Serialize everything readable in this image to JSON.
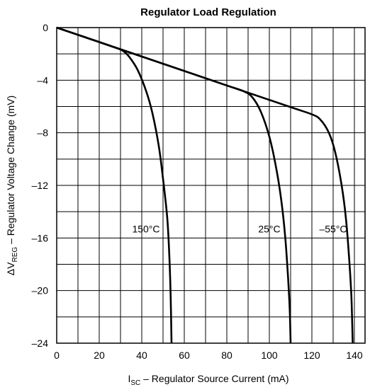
{
  "chart_data": {
    "type": "line",
    "title": "Regulator Load Regulation",
    "ylabel": {
      "prefix": "ΔV",
      "sub": "REG",
      "suffix": " – Regulator Voltage Change (mV)"
    },
    "xlabel": {
      "prefix": "I",
      "sub": "SC",
      "suffix": " – Regulator Source Current (mA)"
    },
    "xlim": [
      0,
      145
    ],
    "ylim": [
      -24,
      0
    ],
    "xticks": [
      0,
      20,
      40,
      60,
      80,
      100,
      120,
      140
    ],
    "yticks": [
      0,
      -4,
      -8,
      -12,
      -16,
      -20,
      -24
    ],
    "ytick_labels": [
      "0",
      "–4",
      "–8",
      "–12",
      "–16",
      "–20",
      "–24"
    ],
    "grid": true,
    "series": [
      {
        "name": "150°C",
        "points": [
          [
            0,
            0
          ],
          [
            10,
            -0.55
          ],
          [
            20,
            -1.1
          ],
          [
            28,
            -1.55
          ],
          [
            31,
            -1.75
          ],
          [
            34,
            -2.2
          ],
          [
            38,
            -3.2
          ],
          [
            42,
            -4.8
          ],
          [
            45,
            -6.5
          ],
          [
            48,
            -9.0
          ],
          [
            50,
            -11.5
          ],
          [
            52,
            -14.5
          ],
          [
            53,
            -17.5
          ],
          [
            53.6,
            -20.5
          ],
          [
            54,
            -24
          ]
        ]
      },
      {
        "name": "25°C",
        "points": [
          [
            0,
            0
          ],
          [
            20,
            -1.1
          ],
          [
            40,
            -2.2
          ],
          [
            60,
            -3.3
          ],
          [
            80,
            -4.4
          ],
          [
            88,
            -4.85
          ],
          [
            92,
            -5.3
          ],
          [
            96,
            -6.4
          ],
          [
            100,
            -8.3
          ],
          [
            103,
            -10.5
          ],
          [
            105.5,
            -13.0
          ],
          [
            107.5,
            -16.0
          ],
          [
            108.8,
            -19.0
          ],
          [
            109.6,
            -21.5
          ],
          [
            110,
            -24
          ]
        ]
      },
      {
        "name": "–55°C",
        "points": [
          [
            0,
            0
          ],
          [
            40,
            -2.2
          ],
          [
            80,
            -4.4
          ],
          [
            110,
            -6.05
          ],
          [
            120,
            -6.6
          ],
          [
            124,
            -7.0
          ],
          [
            128,
            -8.0
          ],
          [
            131,
            -9.5
          ],
          [
            134,
            -12.0
          ],
          [
            136,
            -14.5
          ],
          [
            137.5,
            -17.5
          ],
          [
            138.6,
            -20.5
          ],
          [
            139.2,
            -24
          ]
        ]
      }
    ]
  }
}
